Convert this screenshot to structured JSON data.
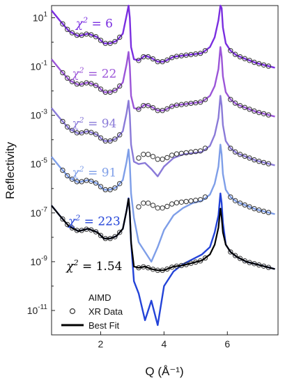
{
  "chart_data": {
    "type": "line",
    "xlabel": "Q (Å⁻¹)",
    "ylabel": "Reflectivity",
    "xlim": [
      0.45,
      7.6
    ],
    "ylim_log10": [
      -12,
      1.5
    ],
    "yscale": "log",
    "x_ticks": [
      2,
      4,
      6
    ],
    "x_tick_labels": [
      "2",
      "4",
      "6"
    ],
    "y_ticks_log10": [
      1,
      -1,
      -3,
      -5,
      -7,
      -9,
      -11
    ],
    "y_tick_labels": [
      {
        "base": "10",
        "exp": "1"
      },
      {
        "base": "10",
        "exp": "-1"
      },
      {
        "base": "10",
        "exp": "-3"
      },
      {
        "base": "10",
        "exp": "-5"
      },
      {
        "base": "10",
        "exp": "-7"
      },
      {
        "base": "10",
        "exp": "-9"
      },
      {
        "base": "10",
        "exp": "-11"
      }
    ],
    "legend": {
      "position": "bottom-left",
      "entries": [
        {
          "label": "AIMD",
          "style": "gradient-line",
          "colors": [
            "#1f3fdc",
            "#8a3ad6"
          ]
        },
        {
          "label": "XR Data",
          "style": "open-circle",
          "color": "#333333"
        },
        {
          "label": "Best Fit",
          "style": "line",
          "color": "#000000"
        }
      ]
    },
    "series": [
      {
        "chi_label": {
          "prefix": "χ",
          "sup": "2",
          "text": " = 6"
        },
        "chi_pos": [
          1.8,
          0.6
        ],
        "color": "#7a2ee0",
        "offset_log10": 0,
        "x": [
          0.45,
          0.7,
          1.0,
          1.3,
          1.6,
          1.9,
          2.1,
          2.3,
          2.5,
          2.7,
          2.82,
          2.88,
          2.92,
          2.96,
          3.05,
          3.2,
          3.4,
          3.6,
          3.8,
          4.0,
          4.3,
          4.6,
          4.9,
          5.2,
          5.45,
          5.6,
          5.72,
          5.78,
          5.82,
          5.86,
          5.95,
          6.1,
          6.3,
          6.6,
          6.9,
          7.2,
          7.5
        ],
        "y_log10": [
          1.3,
          0.9,
          0.45,
          0.25,
          0.35,
          0.2,
          -0.05,
          -0.05,
          0.05,
          0.35,
          1.1,
          1.6,
          1.0,
          -0.2,
          -0.7,
          -0.75,
          -0.55,
          -0.65,
          -0.8,
          -0.8,
          -0.6,
          -0.55,
          -0.5,
          -0.45,
          -0.2,
          0.2,
          0.9,
          1.8,
          1.4,
          0.6,
          -0.05,
          -0.35,
          -0.55,
          -0.7,
          -0.85,
          -0.95,
          -1.05
        ]
      },
      {
        "chi_label": {
          "prefix": "χ",
          "sup": "2",
          "text": " = 22"
        },
        "chi_pos": [
          1.8,
          -1.45
        ],
        "color": "#9b55d8",
        "offset_log10": -2,
        "x": [
          0.45,
          0.7,
          1.0,
          1.3,
          1.6,
          1.9,
          2.1,
          2.3,
          2.5,
          2.7,
          2.82,
          2.88,
          2.92,
          2.96,
          3.05,
          3.2,
          3.4,
          3.6,
          3.8,
          4.0,
          4.3,
          4.6,
          4.9,
          5.2,
          5.45,
          5.6,
          5.72,
          5.78,
          5.82,
          5.86,
          5.95,
          6.1,
          6.3,
          6.6,
          6.9,
          7.2,
          7.5
        ],
        "y_log10": [
          1.3,
          0.9,
          0.45,
          0.25,
          0.35,
          0.2,
          -0.05,
          -0.05,
          0.05,
          0.35,
          1.1,
          1.6,
          1.0,
          -0.2,
          -0.7,
          -0.75,
          -0.55,
          -0.65,
          -0.8,
          -0.8,
          -0.6,
          -0.55,
          -0.5,
          -0.45,
          -0.2,
          0.2,
          0.9,
          1.8,
          1.4,
          0.6,
          -0.05,
          -0.35,
          -0.55,
          -0.7,
          -0.85,
          -0.95,
          -1.05
        ]
      },
      {
        "chi_label": {
          "prefix": "χ",
          "sup": "2",
          "text": " = 94"
        },
        "chi_pos": [
          1.8,
          -3.5
        ],
        "color": "#8a7ad8",
        "offset_log10": -4,
        "x": [
          0.45,
          0.7,
          1.0,
          1.3,
          1.6,
          1.9,
          2.1,
          2.3,
          2.5,
          2.7,
          2.82,
          2.88,
          2.92,
          2.96,
          3.05,
          3.2,
          3.4,
          3.6,
          3.8,
          4.0,
          4.3,
          4.6,
          4.9,
          5.2,
          5.45,
          5.6,
          5.72,
          5.78,
          5.82,
          5.86,
          5.95,
          6.1,
          6.3,
          6.6,
          6.9,
          7.2,
          7.5
        ],
        "y_log10": [
          1.3,
          0.9,
          0.45,
          0.25,
          0.35,
          0.2,
          -0.05,
          -0.05,
          0.05,
          0.35,
          1.1,
          1.6,
          1.0,
          -0.2,
          -0.9,
          -1.0,
          -0.95,
          -1.2,
          -1.5,
          -1.1,
          -0.75,
          -0.6,
          -0.55,
          -0.5,
          -0.25,
          0.2,
          0.9,
          1.8,
          1.4,
          0.6,
          -0.05,
          -0.35,
          -0.55,
          -0.7,
          -0.85,
          -0.95,
          -1.05
        ]
      },
      {
        "chi_label": {
          "prefix": "χ",
          "sup": "2",
          "text": " = 91"
        },
        "chi_pos": [
          1.8,
          -5.5
        ],
        "color": "#7e9ee8",
        "offset_log10": -6,
        "x": [
          0.45,
          0.7,
          1.0,
          1.3,
          1.6,
          1.9,
          2.1,
          2.3,
          2.5,
          2.7,
          2.82,
          2.88,
          2.92,
          2.96,
          3.05,
          3.2,
          3.4,
          3.6,
          3.8,
          4.0,
          4.3,
          4.6,
          4.9,
          5.2,
          5.45,
          5.6,
          5.72,
          5.78,
          5.82,
          5.86,
          5.95,
          6.1,
          6.3,
          6.6,
          6.9,
          7.2,
          7.5
        ],
        "y_log10": [
          1.3,
          0.9,
          0.45,
          0.25,
          0.35,
          0.2,
          -0.05,
          -0.05,
          0.05,
          0.35,
          1.1,
          1.6,
          1.0,
          -0.2,
          -1.2,
          -2.2,
          -2.6,
          -3.0,
          -2.4,
          -1.7,
          -1.1,
          -0.8,
          -0.6,
          -0.5,
          -0.25,
          0.2,
          0.9,
          1.8,
          1.4,
          0.6,
          -0.05,
          -0.35,
          -0.55,
          -0.7,
          -0.85,
          -0.95,
          -1.05
        ]
      },
      {
        "chi_label": {
          "prefix": "χ",
          "sup": "2",
          "text": " = 223"
        },
        "chi_pos": [
          1.8,
          -7.5
        ],
        "color": "#2343d8",
        "offset_log10": -8,
        "x": [
          0.45,
          0.7,
          1.0,
          1.3,
          1.6,
          1.9,
          2.1,
          2.3,
          2.5,
          2.7,
          2.82,
          2.88,
          2.92,
          2.96,
          3.05,
          3.2,
          3.4,
          3.6,
          3.8,
          4.0,
          4.3,
          4.6,
          4.9,
          5.2,
          5.45,
          5.6,
          5.72,
          5.78,
          5.82,
          5.86,
          5.95,
          6.1,
          6.3,
          6.6,
          6.9,
          7.2,
          7.5
        ],
        "y_log10": [
          1.3,
          0.9,
          0.45,
          0.25,
          0.35,
          0.2,
          -0.05,
          -0.05,
          0.05,
          0.35,
          1.1,
          1.6,
          1.0,
          -0.2,
          -1.8,
          -2.3,
          -3.4,
          -2.6,
          -3.6,
          -2.0,
          -1.4,
          -1.1,
          -0.9,
          -0.7,
          -0.4,
          0.2,
          0.9,
          1.8,
          1.4,
          0.6,
          -0.3,
          -0.6,
          -0.8,
          -1.0,
          -1.1,
          -1.2,
          -1.3
        ]
      }
    ],
    "best_fit": {
      "chi_label": {
        "prefix": "χ",
        "sup": "2",
        "text": " = 1.54"
      },
      "chi_pos": [
        1.8,
        -9.35
      ],
      "color": "#000000",
      "offset_log10": -8,
      "x": [
        0.45,
        0.7,
        1.0,
        1.3,
        1.6,
        1.9,
        2.1,
        2.3,
        2.5,
        2.7,
        2.82,
        2.88,
        2.92,
        2.96,
        3.05,
        3.2,
        3.4,
        3.6,
        3.8,
        4.0,
        4.3,
        4.6,
        4.9,
        5.2,
        5.45,
        5.6,
        5.72,
        5.78,
        5.82,
        5.86,
        5.95,
        6.1,
        6.3,
        6.6,
        6.9,
        7.2,
        7.5
      ],
      "y_log10": [
        1.3,
        0.9,
        0.45,
        0.25,
        0.35,
        0.2,
        -0.05,
        -0.05,
        0.05,
        0.35,
        1.1,
        1.6,
        1.0,
        -0.2,
        -1.2,
        -1.25,
        -1.2,
        -1.3,
        -1.35,
        -1.35,
        -1.2,
        -1.15,
        -1.05,
        -0.95,
        -0.7,
        -0.3,
        0.4,
        1.2,
        0.8,
        0.2,
        -0.3,
        -0.6,
        -0.8,
        -1.0,
        -1.1,
        -1.2,
        -1.3
      ]
    },
    "xr_data": {
      "x": [
        0.8,
        0.95,
        1.1,
        1.25,
        1.4,
        1.55,
        1.7,
        1.85,
        2.0,
        2.15,
        2.3,
        2.45,
        2.6,
        3.2,
        3.35,
        3.5,
        3.65,
        3.8,
        3.95,
        4.1,
        4.25,
        4.4,
        4.55,
        4.7,
        4.85,
        5.0,
        5.15,
        5.3,
        6.1,
        6.25,
        6.4,
        6.55,
        6.7,
        6.85,
        7.0,
        7.15,
        7.3
      ]
    }
  }
}
